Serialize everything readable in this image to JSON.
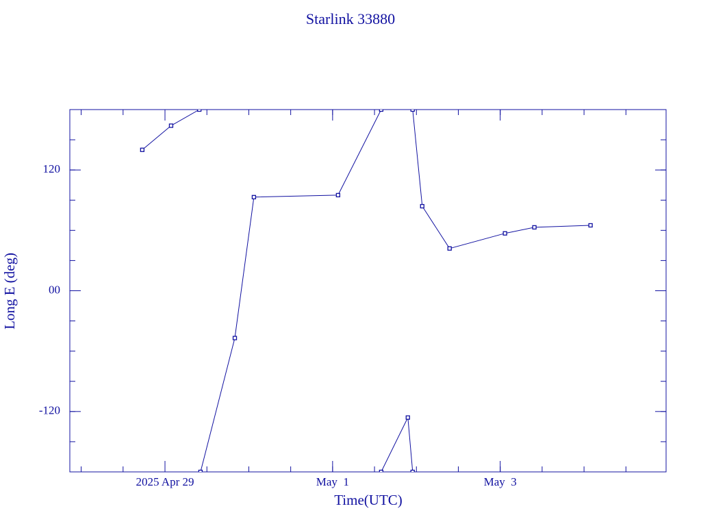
{
  "chart_data": {
    "type": "line",
    "title": "Starlink 33880",
    "x_label": "Time(UTC)",
    "y_label": "Long E (deg)",
    "color": "#1010a0",
    "xlim": [
      "2025-04-27T20:45Z",
      "2025-05-04T23:30Z"
    ],
    "xticks": [
      {
        "value": "2025-04-29T00:00Z",
        "label": "2025 Apr 29"
      },
      {
        "value": "2025-05-01T00:00Z",
        "label": "May  1"
      },
      {
        "value": "2025-05-03T00:00Z",
        "label": "May  3"
      }
    ],
    "x_minor_hours": 12,
    "ylim": [
      -180,
      180
    ],
    "yticks": [
      {
        "value": 120,
        "label": "120"
      },
      {
        "value": 0,
        "label": "00"
      },
      -120
    ],
    "y_minor": 30,
    "x": [
      "2025-04-28T17:30Z",
      "2025-04-29T01:45Z",
      "2025-04-29T09:50Z",
      null,
      "2025-04-29T10:10Z",
      "2025-04-29T20:00Z",
      "2025-04-30T01:28Z",
      "2025-05-01T01:34Z",
      "2025-05-01T13:55Z",
      null,
      "2025-05-01T13:55Z",
      "2025-05-01T21:33Z",
      "2025-05-01T22:55Z",
      null,
      "2025-05-01T22:55Z",
      "2025-05-02T01:40Z",
      "2025-05-02T09:30Z",
      "2025-05-03T01:22Z",
      "2025-05-03T09:47Z",
      "2025-05-04T01:52Z"
    ],
    "series": [
      {
        "values": [
          140,
          164,
          180,
          null,
          -180,
          -47,
          93,
          95,
          180,
          null,
          -180,
          -126,
          -180,
          null,
          180,
          84,
          42,
          57,
          63,
          65
        ]
      }
    ]
  }
}
